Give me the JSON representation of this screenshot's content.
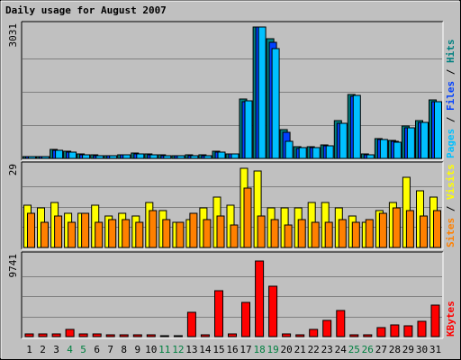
{
  "chart_data": {
    "type": "bar",
    "title": "Daily usage for August 2007",
    "categories": [
      "1",
      "2",
      "3",
      "4",
      "5",
      "6",
      "7",
      "8",
      "9",
      "10",
      "11",
      "12",
      "13",
      "14",
      "15",
      "16",
      "17",
      "18",
      "19",
      "20",
      "21",
      "22",
      "23",
      "24",
      "25",
      "26",
      "27",
      "28",
      "29",
      "30",
      "31"
    ],
    "weekend_days": [
      "4",
      "5",
      "11",
      "12",
      "18",
      "19",
      "25",
      "26"
    ],
    "colors": {
      "background": "#c0c0c0",
      "frame": "#ffffff",
      "title": "#0000ff",
      "weekday_label": "#000000",
      "weekend_label": "#008040",
      "pages": "#00c0ff",
      "files": "#0040ff",
      "hits": "#008080",
      "visits": "#ffff00",
      "sites": "#ff8000",
      "kbytes": "#ff0000"
    },
    "panels": [
      {
        "id": "top",
        "max_label": "3031",
        "ylim": [
          0,
          3031
        ],
        "side_labels": [
          {
            "text": "Pages",
            "color": "#00c0ff"
          },
          {
            "text": "Files",
            "color": "#0040ff"
          },
          {
            "text": "Hits",
            "color": "#008080"
          }
        ],
        "series": [
          {
            "name": "Hits",
            "color": "#008080",
            "values": [
              50,
              50,
              210,
              170,
              100,
              80,
              70,
              90,
              120,
              100,
              80,
              70,
              80,
              80,
              170,
              110,
              1360,
              3000,
              2720,
              660,
              260,
              260,
              300,
              860,
              1460,
              100,
              450,
              400,
              730,
              860,
              1330
            ]
          },
          {
            "name": "Files",
            "color": "#0040ff",
            "values": [
              40,
              40,
              190,
              150,
              90,
              70,
              60,
              80,
              110,
              90,
              70,
              60,
              70,
              70,
              150,
              100,
              1300,
              2980,
              2650,
              600,
              230,
              240,
              280,
              800,
              1420,
              90,
              420,
              380,
              700,
              820,
              1280
            ]
          },
          {
            "name": "Pages",
            "color": "#00c0ff",
            "values": [
              40,
              40,
              190,
              150,
              90,
              70,
              60,
              80,
              110,
              90,
              70,
              60,
              70,
              70,
              150,
              100,
              1310,
              2980,
              2490,
              380,
              240,
              240,
              280,
              800,
              1430,
              80,
              420,
              370,
              700,
              820,
              1290
            ]
          }
        ]
      },
      {
        "id": "middle",
        "max_label": "29",
        "ylim": [
          0,
          29
        ],
        "side_labels": [
          {
            "text": "Sites",
            "color": "#ff8000"
          },
          {
            "text": "Visits",
            "color": "#ffff00"
          }
        ],
        "series": [
          {
            "name": "Visits",
            "color": "#ffff00",
            "values": [
              15,
              14,
              16,
              12,
              12,
              15,
              11,
              12,
              11,
              16,
              13,
              9,
              10,
              14,
              18,
              15,
              28,
              27,
              14,
              14,
              14,
              16,
              16,
              14,
              11,
              9,
              13,
              16,
              25,
              20,
              18
            ]
          },
          {
            "name": "Sites",
            "color": "#ff8000",
            "values": [
              12,
              9,
              11,
              9,
              12,
              9,
              10,
              10,
              9,
              13,
              10,
              9,
              12,
              10,
              11,
              8,
              21,
              11,
              10,
              8,
              10,
              9,
              9,
              10,
              9,
              10,
              12,
              14,
              13,
              11,
              13
            ]
          }
        ]
      },
      {
        "id": "bottom",
        "max_label": "9741",
        "ylim": [
          0,
          9741
        ],
        "side_labels": [
          {
            "text": "KBytes",
            "color": "#ff0000"
          }
        ],
        "series": [
          {
            "name": "KBytes",
            "color": "#ff0000",
            "values": [
              350,
              300,
              300,
              900,
              300,
              300,
              200,
              200,
              200,
              200,
              150,
              150,
              2900,
              200,
              5500,
              300,
              4100,
              9100,
              6100,
              300,
              250,
              850,
              1950,
              3100,
              200,
              200,
              1050,
              1450,
              1350,
              1800,
              3750
            ]
          }
        ]
      }
    ]
  }
}
